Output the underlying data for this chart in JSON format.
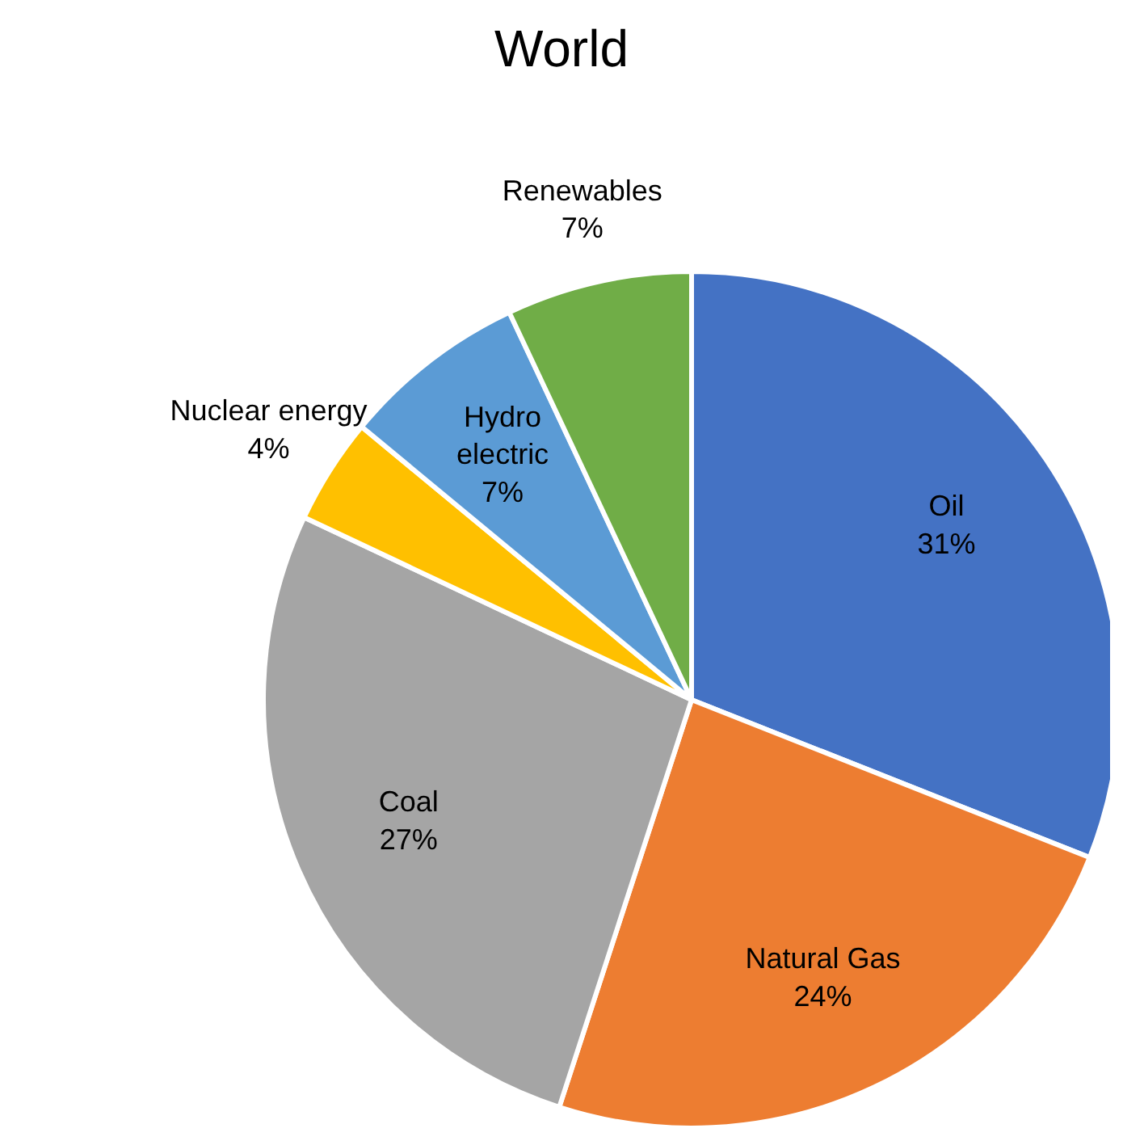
{
  "chart_data": {
    "type": "pie",
    "title": "World",
    "categories": [
      "Oil",
      "Natural Gas",
      "Coal",
      "Nuclear energy",
      "Hydro electric",
      "Renewables"
    ],
    "values": [
      31,
      24,
      27,
      4,
      7,
      7
    ],
    "value_labels": [
      "31%",
      "24%",
      "27%",
      "4%",
      "7%",
      "7%"
    ],
    "colors": [
      "#4472c4",
      "#ed7d31",
      "#a5a5a5",
      "#ffc000",
      "#5b9bd5",
      "#70ad47"
    ],
    "legend": false
  }
}
